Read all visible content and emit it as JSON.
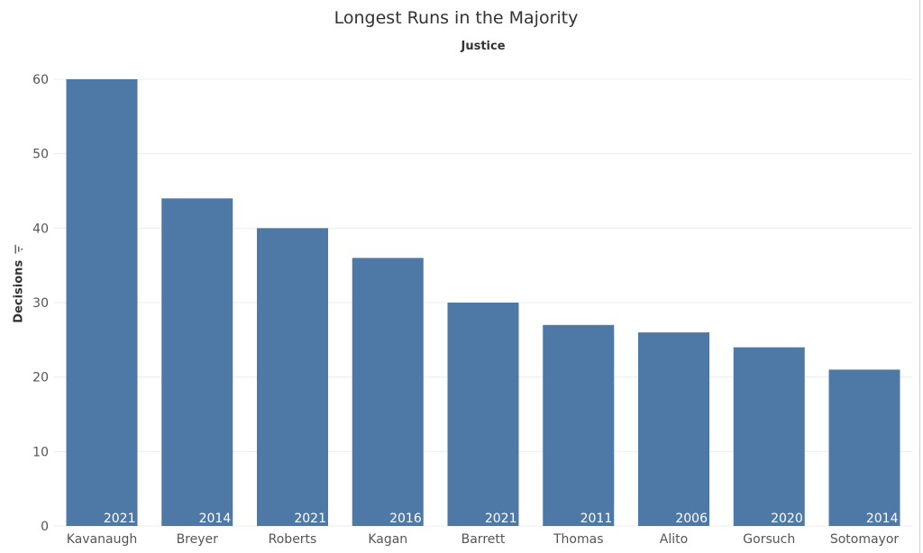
{
  "chart_data": {
    "type": "bar",
    "title": "Longest Runs in the Majority",
    "subtitle": "Justice",
    "ylabel": "Decisions",
    "xlabel": "",
    "ylim": [
      0,
      60
    ],
    "yticks": [
      0,
      10,
      20,
      30,
      40,
      50,
      60
    ],
    "grid": true,
    "categories": [
      "Kavanaugh",
      "Breyer",
      "Roberts",
      "Kagan",
      "Barrett",
      "Thomas",
      "Alito",
      "Gorsuch",
      "Sotomayor"
    ],
    "values": [
      60,
      44,
      40,
      36,
      30,
      27,
      26,
      24,
      21
    ],
    "data_labels": [
      "2021",
      "2014",
      "2021",
      "2016",
      "2021",
      "2011",
      "2006",
      "2020",
      "2014"
    ],
    "bar_color": "#4e79a7",
    "gridline_color": "#ececec"
  },
  "icons": {
    "sort": "sort-descending-icon"
  }
}
